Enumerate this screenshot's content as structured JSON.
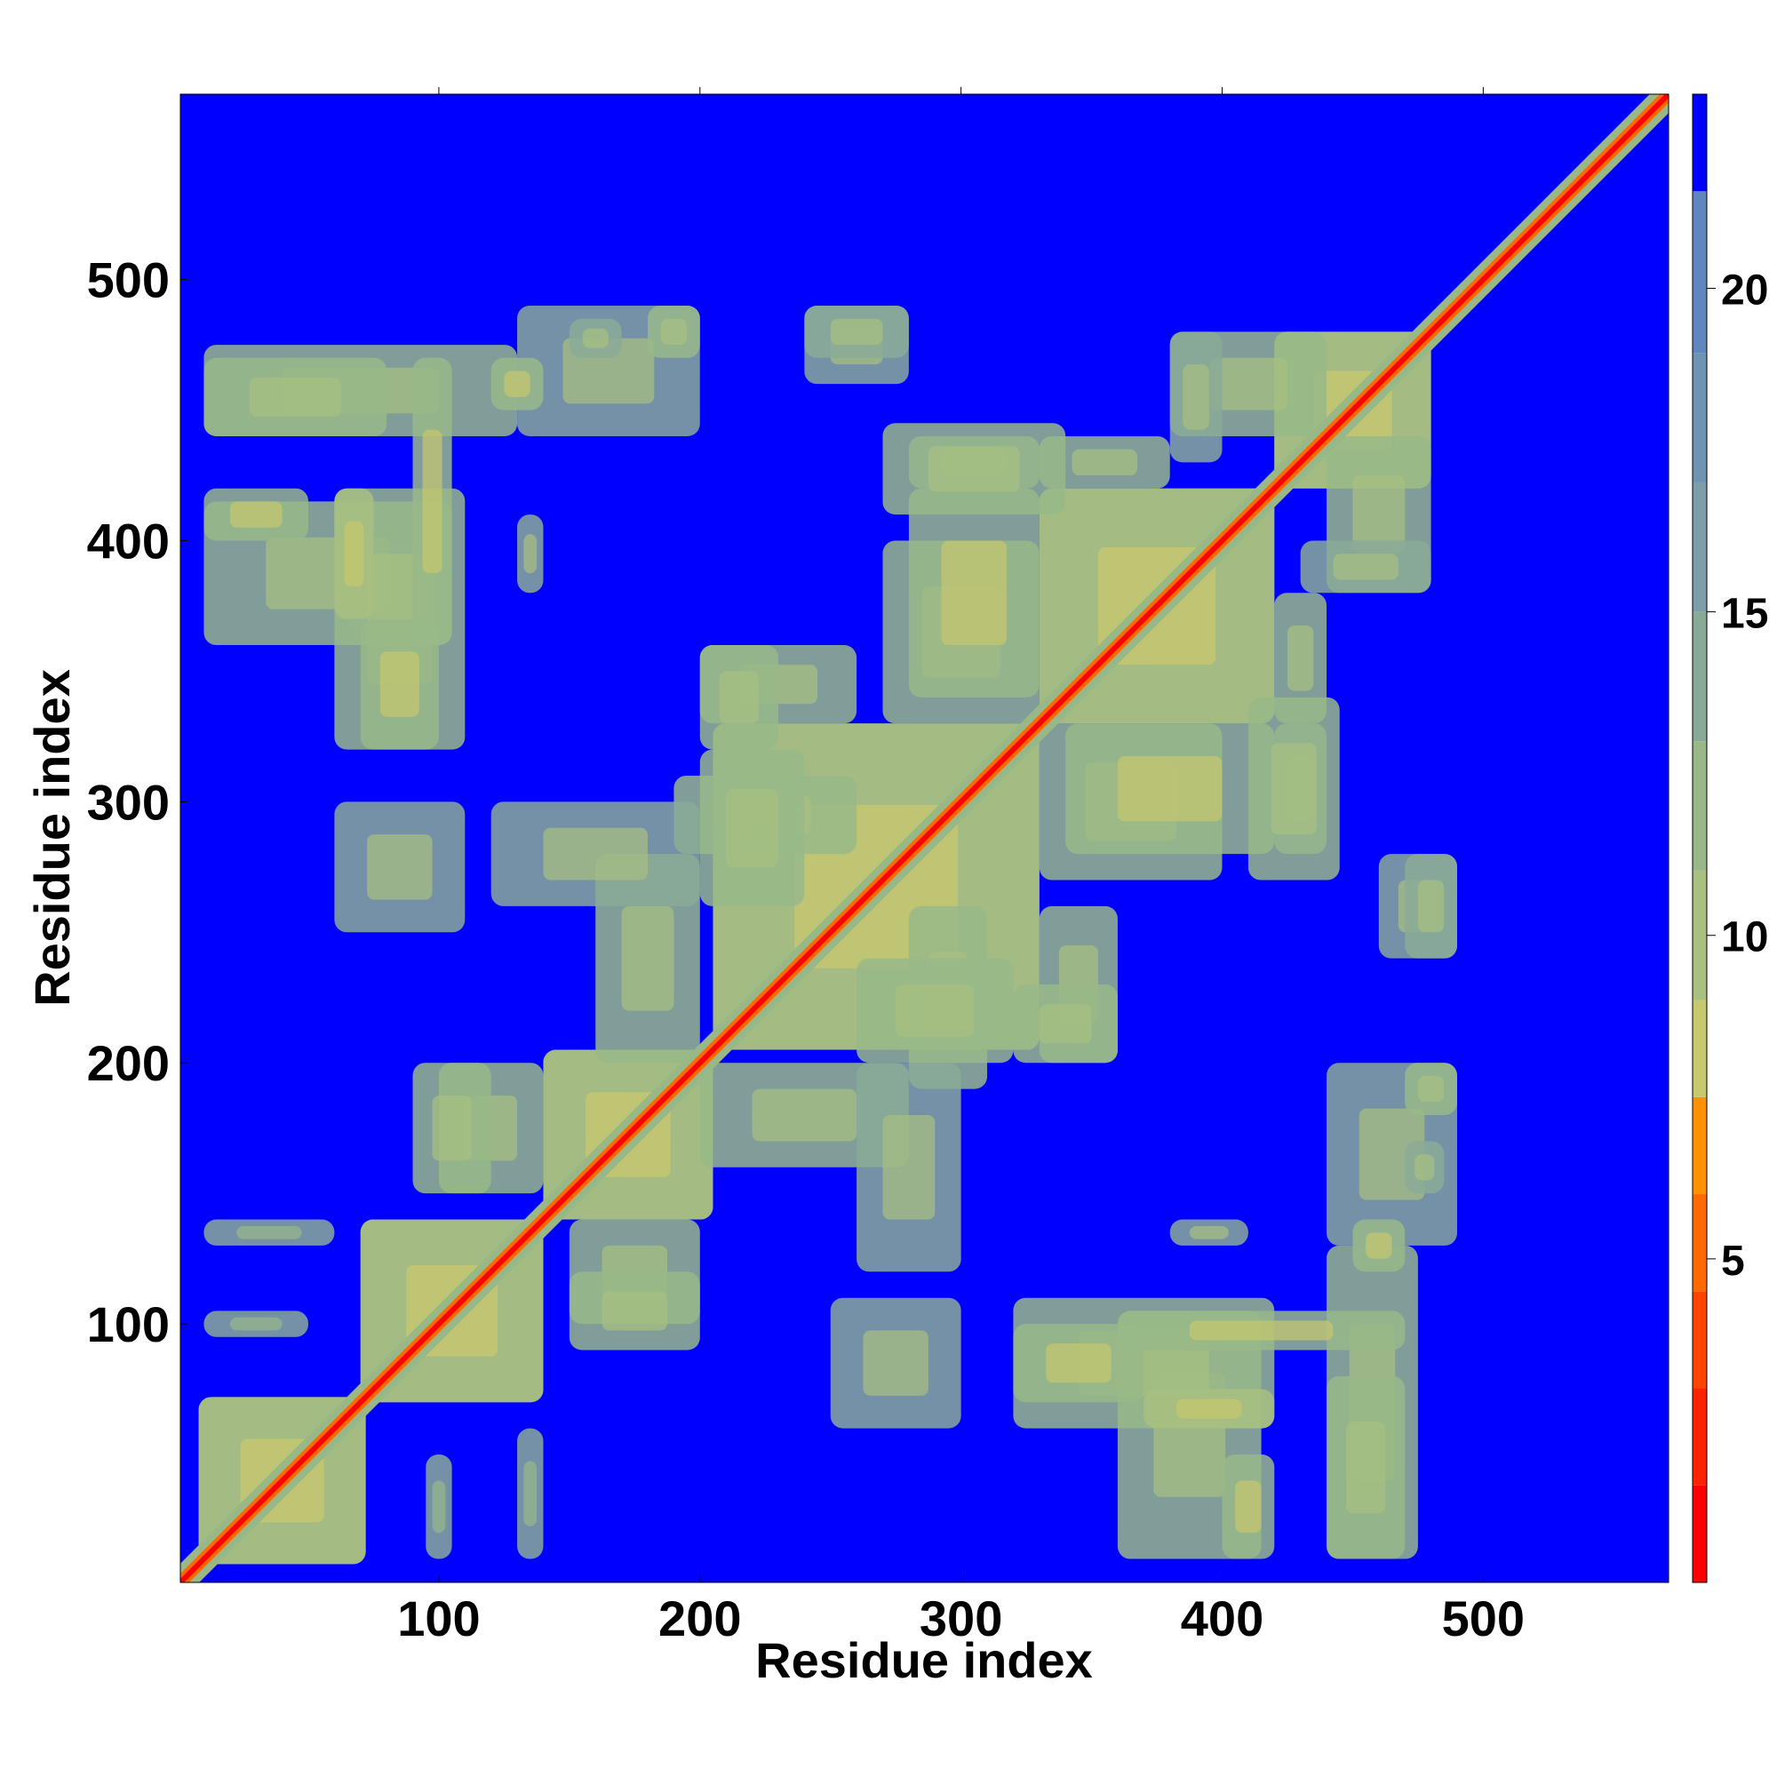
{
  "chart_data": {
    "type": "heatmap",
    "title": "",
    "xlabel": "Residue index",
    "ylabel": "Residue index",
    "xlim": [
      1,
      571
    ],
    "ylim": [
      1,
      571
    ],
    "xticks": [
      100,
      200,
      300,
      400,
      500
    ],
    "yticks": [
      100,
      200,
      300,
      400,
      500
    ],
    "colorbar": {
      "ticks": [
        5,
        10,
        15,
        20
      ],
      "range": [
        0,
        23
      ],
      "bands": [
        {
          "from": 0,
          "to": 1.5,
          "color": "#ff0000"
        },
        {
          "from": 1.5,
          "to": 3.0,
          "color": "#ff2200"
        },
        {
          "from": 3.0,
          "to": 4.5,
          "color": "#ff4400"
        },
        {
          "from": 4.5,
          "to": 6.0,
          "color": "#ff6a00"
        },
        {
          "from": 6.0,
          "to": 7.5,
          "color": "#ff9000"
        },
        {
          "from": 7.5,
          "to": 9.0,
          "color": "#c8c86e"
        },
        {
          "from": 9.0,
          "to": 11.0,
          "color": "#a8c080"
        },
        {
          "from": 11.0,
          "to": 13.0,
          "color": "#98b888"
        },
        {
          "from": 13.0,
          "to": 15.0,
          "color": "#8aaa98"
        },
        {
          "from": 15.0,
          "to": 17.0,
          "color": "#7c9ea8"
        },
        {
          "from": 17.0,
          "to": 19.0,
          "color": "#6e94b4"
        },
        {
          "from": 19.0,
          "to": 21.5,
          "color": "#5f86be"
        },
        {
          "from": 21.5,
          "to": 23.0,
          "color": "#0000ff"
        }
      ]
    },
    "background_color": "#0000ff",
    "diagonal": {
      "from": 1,
      "to": 571
    },
    "contact_regions": [
      {
        "x": [
          8,
          72
        ],
        "y": [
          8,
          72
        ],
        "value": 10
      },
      {
        "x": [
          70,
          140
        ],
        "y": [
          70,
          140
        ],
        "value": 10
      },
      {
        "x": [
          140,
          205
        ],
        "y": [
          140,
          205
        ],
        "value": 10
      },
      {
        "x": [
          205,
          330
        ],
        "y": [
          205,
          330
        ],
        "value": 10
      },
      {
        "x": [
          330,
          420
        ],
        "y": [
          330,
          420
        ],
        "value": 10
      },
      {
        "x": [
          420,
          480
        ],
        "y": [
          420,
          480
        ],
        "value": 10
      },
      {
        "x": [
          10,
          130
        ],
        "y": [
          440,
          475
        ],
        "value": 12
      },
      {
        "x": [
          10,
          105
        ],
        "y": [
          360,
          415
        ],
        "value": 12
      },
      {
        "x": [
          60,
          110
        ],
        "y": [
          320,
          420
        ],
        "value": 12
      },
      {
        "x": [
          130,
          200
        ],
        "y": [
          440,
          490
        ],
        "value": 13
      },
      {
        "x": [
          240,
          280
        ],
        "y": [
          460,
          490
        ],
        "value": 13
      },
      {
        "x": [
          280,
          330
        ],
        "y": [
          420,
          440
        ],
        "value": 13
      },
      {
        "x": [
          330,
          380
        ],
        "y": [
          420,
          440
        ],
        "value": 12
      },
      {
        "x": [
          380,
          440
        ],
        "y": [
          440,
          480
        ],
        "value": 12
      },
      {
        "x": [
          430,
          480
        ],
        "y": [
          380,
          400
        ],
        "value": 13
      },
      {
        "x": [
          270,
          330
        ],
        "y": [
          330,
          400
        ],
        "value": 11
      },
      {
        "x": [
          340,
          420
        ],
        "y": [
          280,
          330
        ],
        "value": 11
      },
      {
        "x": [
          410,
          445
        ],
        "y": [
          270,
          340
        ],
        "value": 12
      },
      {
        "x": [
          470,
          490
        ],
        "y": [
          240,
          280
        ],
        "value": 13
      },
      {
        "x": [
          200,
          260
        ],
        "y": [
          330,
          360
        ],
        "value": 12
      },
      {
        "x": [
          190,
          260
        ],
        "y": [
          280,
          310
        ],
        "value": 12
      },
      {
        "x": [
          260,
          320
        ],
        "y": [
          200,
          240
        ],
        "value": 12
      },
      {
        "x": [
          320,
          360
        ],
        "y": [
          200,
          230
        ],
        "value": 12
      },
      {
        "x": [
          200,
          280
        ],
        "y": [
          160,
          200
        ],
        "value": 12
      },
      {
        "x": [
          150,
          200
        ],
        "y": [
          100,
          140
        ],
        "value": 12
      },
      {
        "x": [
          360,
          470
        ],
        "y": [
          90,
          105
        ],
        "value": 11
      },
      {
        "x": [
          370,
          420
        ],
        "y": [
          60,
          75
        ],
        "value": 10
      },
      {
        "x": [
          400,
          420
        ],
        "y": [
          10,
          50
        ],
        "value": 11
      },
      {
        "x": [
          440,
          470
        ],
        "y": [
          10,
          80
        ],
        "value": 12
      },
      {
        "x": [
          320,
          370
        ],
        "y": [
          70,
          100
        ],
        "value": 11
      },
      {
        "x": [
          470,
          490
        ],
        "y": [
          180,
          200
        ],
        "value": 12
      },
      {
        "x": [
          470,
          485
        ],
        "y": [
          150,
          170
        ],
        "value": 13
      },
      {
        "x": [
          450,
          470
        ],
        "y": [
          120,
          140
        ],
        "value": 11
      },
      {
        "x": [
          380,
          410
        ],
        "y": [
          130,
          140
        ],
        "value": 13
      },
      {
        "x": [
          10,
          60
        ],
        "y": [
          130,
          140
        ],
        "value": 14
      },
      {
        "x": [
          10,
          50
        ],
        "y": [
          95,
          105
        ],
        "value": 14
      },
      {
        "x": [
          60,
          110
        ],
        "y": [
          250,
          300
        ],
        "value": 13
      },
      {
        "x": [
          120,
          200
        ],
        "y": [
          260,
          300
        ],
        "value": 13
      },
      {
        "x": [
          90,
          120
        ],
        "y": [
          150,
          200
        ],
        "value": 12
      }
    ]
  }
}
